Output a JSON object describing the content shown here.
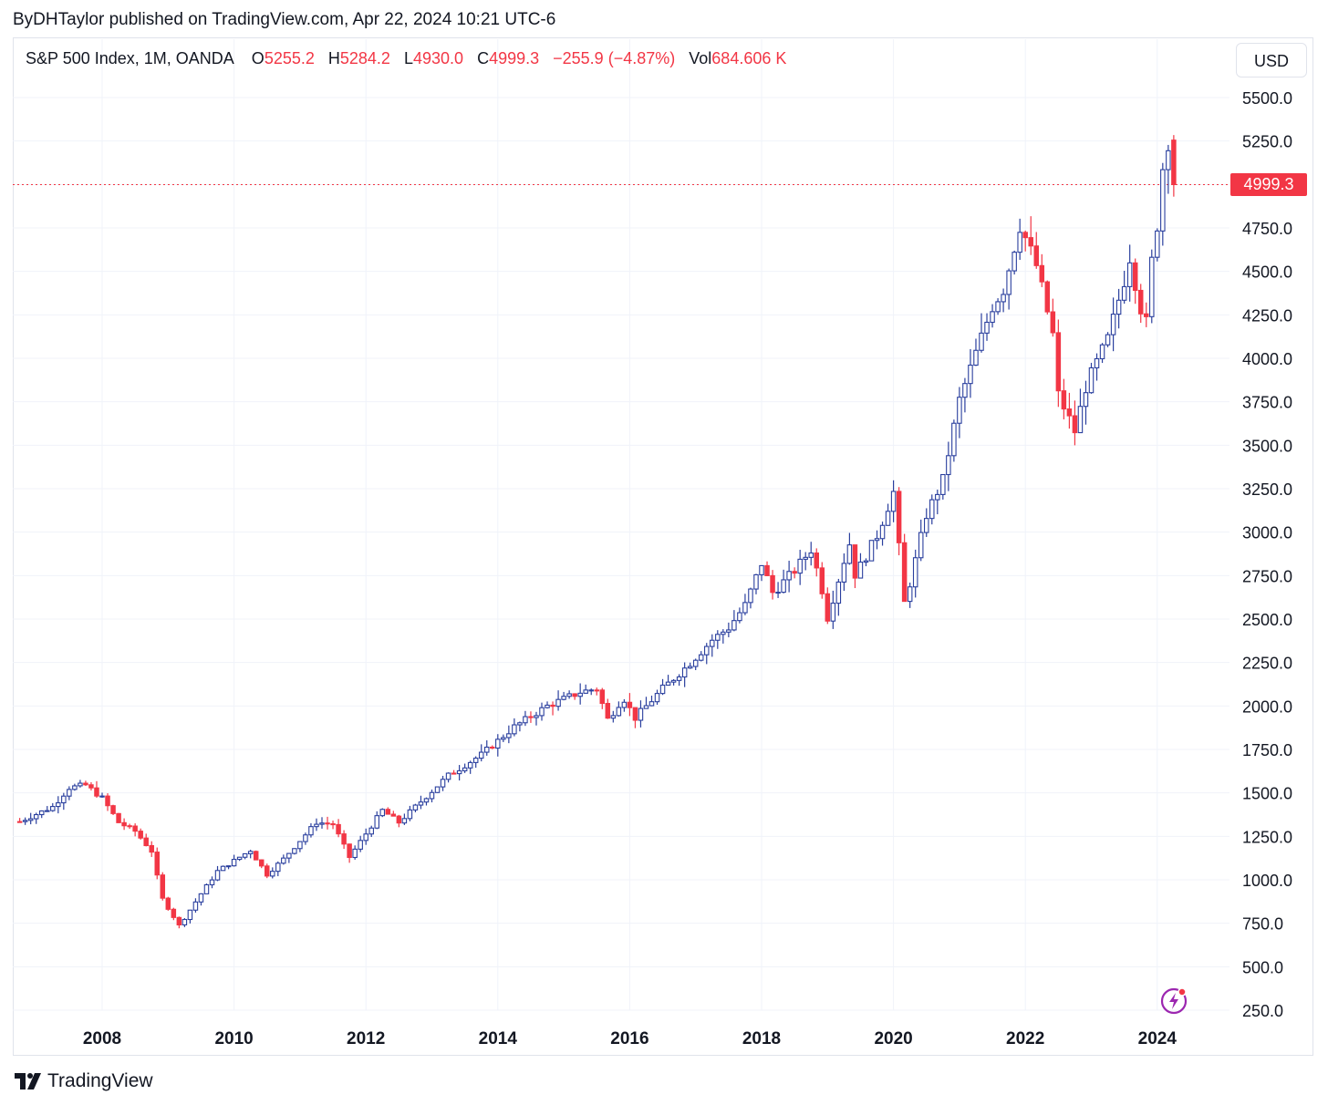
{
  "attribution": "ByDHTaylor published on TradingView.com, Apr 22, 2024 10:21 UTC-6",
  "legend": {
    "symbol": "S&P 500 Index, 1M, OANDA",
    "o_label": "O",
    "o_value": "5255.2",
    "h_label": "H",
    "h_value": "5284.2",
    "l_label": "L",
    "l_value": "4930.0",
    "c_label": "C",
    "c_value": "4999.3",
    "change": "−255.9 (−4.87%)",
    "vol_label": "Vol",
    "vol_value": "684.606 K"
  },
  "currency_button": "USD",
  "last_price_label": "4999.3",
  "brand": "TradingView",
  "colors": {
    "up": "#2a3f9e",
    "down": "#f23645",
    "grid": "#f0f3fa",
    "price_line": "#f23645"
  },
  "chart_data": {
    "type": "candlestick",
    "interval": "1M",
    "y_axis_ticks": [
      "5500.0",
      "5250.0",
      "5000.0",
      "4750.0",
      "4500.0",
      "4250.0",
      "4000.0",
      "3750.0",
      "3500.0",
      "3250.0",
      "3000.0",
      "2750.0",
      "2500.0",
      "2250.0",
      "2000.0",
      "1750.0",
      "1500.0",
      "1250.0",
      "1000.0",
      "750.0",
      "500.0",
      "250.0"
    ],
    "x_axis_ticks": [
      "2008",
      "2010",
      "2012",
      "2014",
      "2016",
      "2018",
      "2020",
      "2022",
      "2024"
    ],
    "ylim": [
      250,
      5500
    ],
    "last_price": 4999.3,
    "ohlc_last": {
      "open": 5255.2,
      "high": 5284.2,
      "low": 4930.0,
      "close": 4999.3
    },
    "close_path": [
      {
        "x": 2006.75,
        "y": 1335
      },
      {
        "x": 2007.25,
        "y": 1420
      },
      {
        "x": 2007.5,
        "y": 1530
      },
      {
        "x": 2007.75,
        "y": 1545
      },
      {
        "x": 2008.0,
        "y": 1470
      },
      {
        "x": 2008.25,
        "y": 1330
      },
      {
        "x": 2008.5,
        "y": 1280
      },
      {
        "x": 2008.75,
        "y": 1165
      },
      {
        "x": 2008.9,
        "y": 900
      },
      {
        "x": 2009.17,
        "y": 735
      },
      {
        "x": 2009.5,
        "y": 920
      },
      {
        "x": 2009.75,
        "y": 1050
      },
      {
        "x": 2010.25,
        "y": 1170
      },
      {
        "x": 2010.5,
        "y": 1030
      },
      {
        "x": 2010.75,
        "y": 1120
      },
      {
        "x": 2011.25,
        "y": 1330
      },
      {
        "x": 2011.5,
        "y": 1320
      },
      {
        "x": 2011.75,
        "y": 1130
      },
      {
        "x": 2012.25,
        "y": 1400
      },
      {
        "x": 2012.5,
        "y": 1330
      },
      {
        "x": 2012.75,
        "y": 1420
      },
      {
        "x": 2013.25,
        "y": 1600
      },
      {
        "x": 2013.75,
        "y": 1720
      },
      {
        "x": 2014.25,
        "y": 1880
      },
      {
        "x": 2014.75,
        "y": 2000
      },
      {
        "x": 2015.25,
        "y": 2080
      },
      {
        "x": 2015.5,
        "y": 2100
      },
      {
        "x": 2015.67,
        "y": 1920
      },
      {
        "x": 2015.9,
        "y": 2050
      },
      {
        "x": 2016.08,
        "y": 1930
      },
      {
        "x": 2016.5,
        "y": 2100
      },
      {
        "x": 2016.9,
        "y": 2240
      },
      {
        "x": 2017.25,
        "y": 2380
      },
      {
        "x": 2017.5,
        "y": 2450
      },
      {
        "x": 2017.75,
        "y": 2580
      },
      {
        "x": 2018.0,
        "y": 2820
      },
      {
        "x": 2018.17,
        "y": 2650
      },
      {
        "x": 2018.5,
        "y": 2780
      },
      {
        "x": 2018.75,
        "y": 2900
      },
      {
        "x": 2018.9,
        "y": 2700
      },
      {
        "x": 2019.0,
        "y": 2510
      },
      {
        "x": 2019.33,
        "y": 2940
      },
      {
        "x": 2019.42,
        "y": 2750
      },
      {
        "x": 2019.75,
        "y": 2980
      },
      {
        "x": 2020.0,
        "y": 3230
      },
      {
        "x": 2020.17,
        "y": 2580
      },
      {
        "x": 2020.5,
        "y": 3100
      },
      {
        "x": 2020.75,
        "y": 3300
      },
      {
        "x": 2021.0,
        "y": 3760
      },
      {
        "x": 2021.5,
        "y": 4300
      },
      {
        "x": 2021.67,
        "y": 4400
      },
      {
        "x": 2021.92,
        "y": 4770
      },
      {
        "x": 2022.17,
        "y": 4530
      },
      {
        "x": 2022.42,
        "y": 4130
      },
      {
        "x": 2022.5,
        "y": 3790
      },
      {
        "x": 2022.75,
        "y": 3580
      },
      {
        "x": 2022.92,
        "y": 3840
      },
      {
        "x": 2023.25,
        "y": 4110
      },
      {
        "x": 2023.5,
        "y": 4450
      },
      {
        "x": 2023.58,
        "y": 4590
      },
      {
        "x": 2023.75,
        "y": 4290
      },
      {
        "x": 2023.83,
        "y": 4190
      },
      {
        "x": 2023.92,
        "y": 4570
      },
      {
        "x": 2024.0,
        "y": 4770
      },
      {
        "x": 2024.08,
        "y": 5090
      },
      {
        "x": 2024.17,
        "y": 5255
      },
      {
        "x": 2024.3,
        "y": 4999
      }
    ]
  }
}
